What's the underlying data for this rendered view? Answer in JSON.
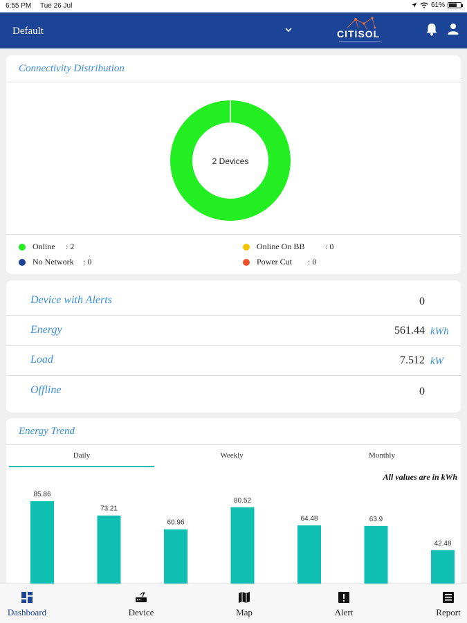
{
  "status_bar": {
    "time": "6:55 PM",
    "date": "Tue 26 Jul",
    "battery": "61%",
    "battery_level": 0.61
  },
  "header": {
    "selected_site": "Default",
    "logo_text": "CITISOL",
    "icons": [
      "bell-icon",
      "user-icon",
      "chevron-down-icon"
    ]
  },
  "connectivity": {
    "title": "Connectivity Distribution",
    "center_label": "2 Devices",
    "legend": [
      {
        "label": "Online",
        "value": ": 2",
        "color": "#22ee22"
      },
      {
        "label": "Online On BB",
        "value": ": 0",
        "color": "#f5c400"
      },
      {
        "label": "No Network",
        "value": ": 0",
        "color": "#1c4496"
      },
      {
        "label": "Power Cut",
        "value": ": 0",
        "color": "#f0522a"
      }
    ]
  },
  "stats": [
    {
      "label": "Device with Alerts",
      "value": "0",
      "unit": ""
    },
    {
      "label": "Energy",
      "value": "561.44",
      "unit": "kWh"
    },
    {
      "label": "Load",
      "value": "7.512",
      "unit": "kW"
    },
    {
      "label": "Offline",
      "value": "0",
      "unit": ""
    }
  ],
  "energy_trend": {
    "title": "Energy Trend",
    "tabs": [
      "Daily",
      "Weekly",
      "Monthly"
    ],
    "active_tab": "Daily",
    "note": "All values are in kWh"
  },
  "chart_data": [
    {
      "type": "pie",
      "title": "Connectivity Distribution",
      "categories": [
        "Online",
        "Online On BB",
        "No Network",
        "Power Cut"
      ],
      "values": [
        2,
        0,
        0,
        0
      ],
      "colors": [
        "#22ee22",
        "#f5c400",
        "#1c4496",
        "#f0522a"
      ],
      "center_label": "2 Devices"
    },
    {
      "type": "bar",
      "title": "Energy Trend",
      "categories": [
        "",
        "",
        "",
        "",
        "",
        "",
        ""
      ],
      "values": [
        85.86,
        73.21,
        60.96,
        80.52,
        64.48,
        63.9,
        42.48
      ],
      "labels": [
        "85.86",
        "73.21",
        "60.96",
        "80.52",
        "64.48",
        "63.9",
        "42.48"
      ],
      "color": "#0fbfb1",
      "ylabel": "",
      "xlabel": "",
      "ylim": [
        0,
        100
      ]
    }
  ],
  "bottom_nav": [
    {
      "label": "Dashboard",
      "icon": "dashboard-icon",
      "active": true
    },
    {
      "label": "Device",
      "icon": "router-icon",
      "active": false
    },
    {
      "label": "Map",
      "icon": "map-icon",
      "active": false
    },
    {
      "label": "Alert",
      "icon": "alert-icon",
      "active": false
    },
    {
      "label": "Report",
      "icon": "report-icon",
      "active": false
    }
  ]
}
